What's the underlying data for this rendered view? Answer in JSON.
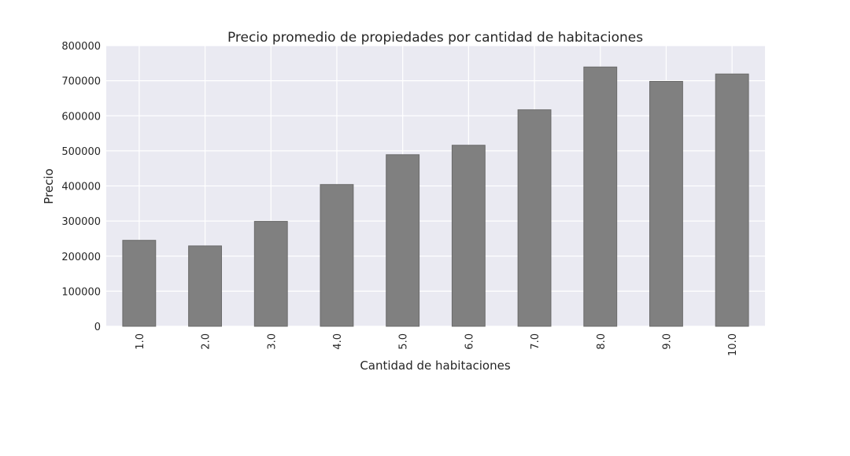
{
  "chart_data": {
    "type": "bar",
    "title": "Precio promedio de propiedades por cantidad de habitaciones",
    "xlabel": "Cantidad de habitaciones",
    "ylabel": "Precio",
    "categories": [
      "1.0",
      "2.0",
      "3.0",
      "4.0",
      "5.0",
      "6.0",
      "7.0",
      "8.0",
      "9.0",
      "10.0"
    ],
    "values": [
      245000,
      229000,
      299000,
      404000,
      489000,
      516000,
      617000,
      739000,
      698000,
      719000
    ],
    "ylim": [
      0,
      800000
    ],
    "yticks": [
      "0",
      "100000",
      "200000",
      "300000",
      "400000",
      "500000",
      "600000",
      "700000",
      "800000"
    ],
    "grid": true,
    "legend": "none",
    "colors": {
      "bar": "#808080",
      "bar_edge": "#6a6a6a",
      "plot_background": "#eaeaf2",
      "grid": "#ffffff",
      "text": "#262626"
    }
  }
}
